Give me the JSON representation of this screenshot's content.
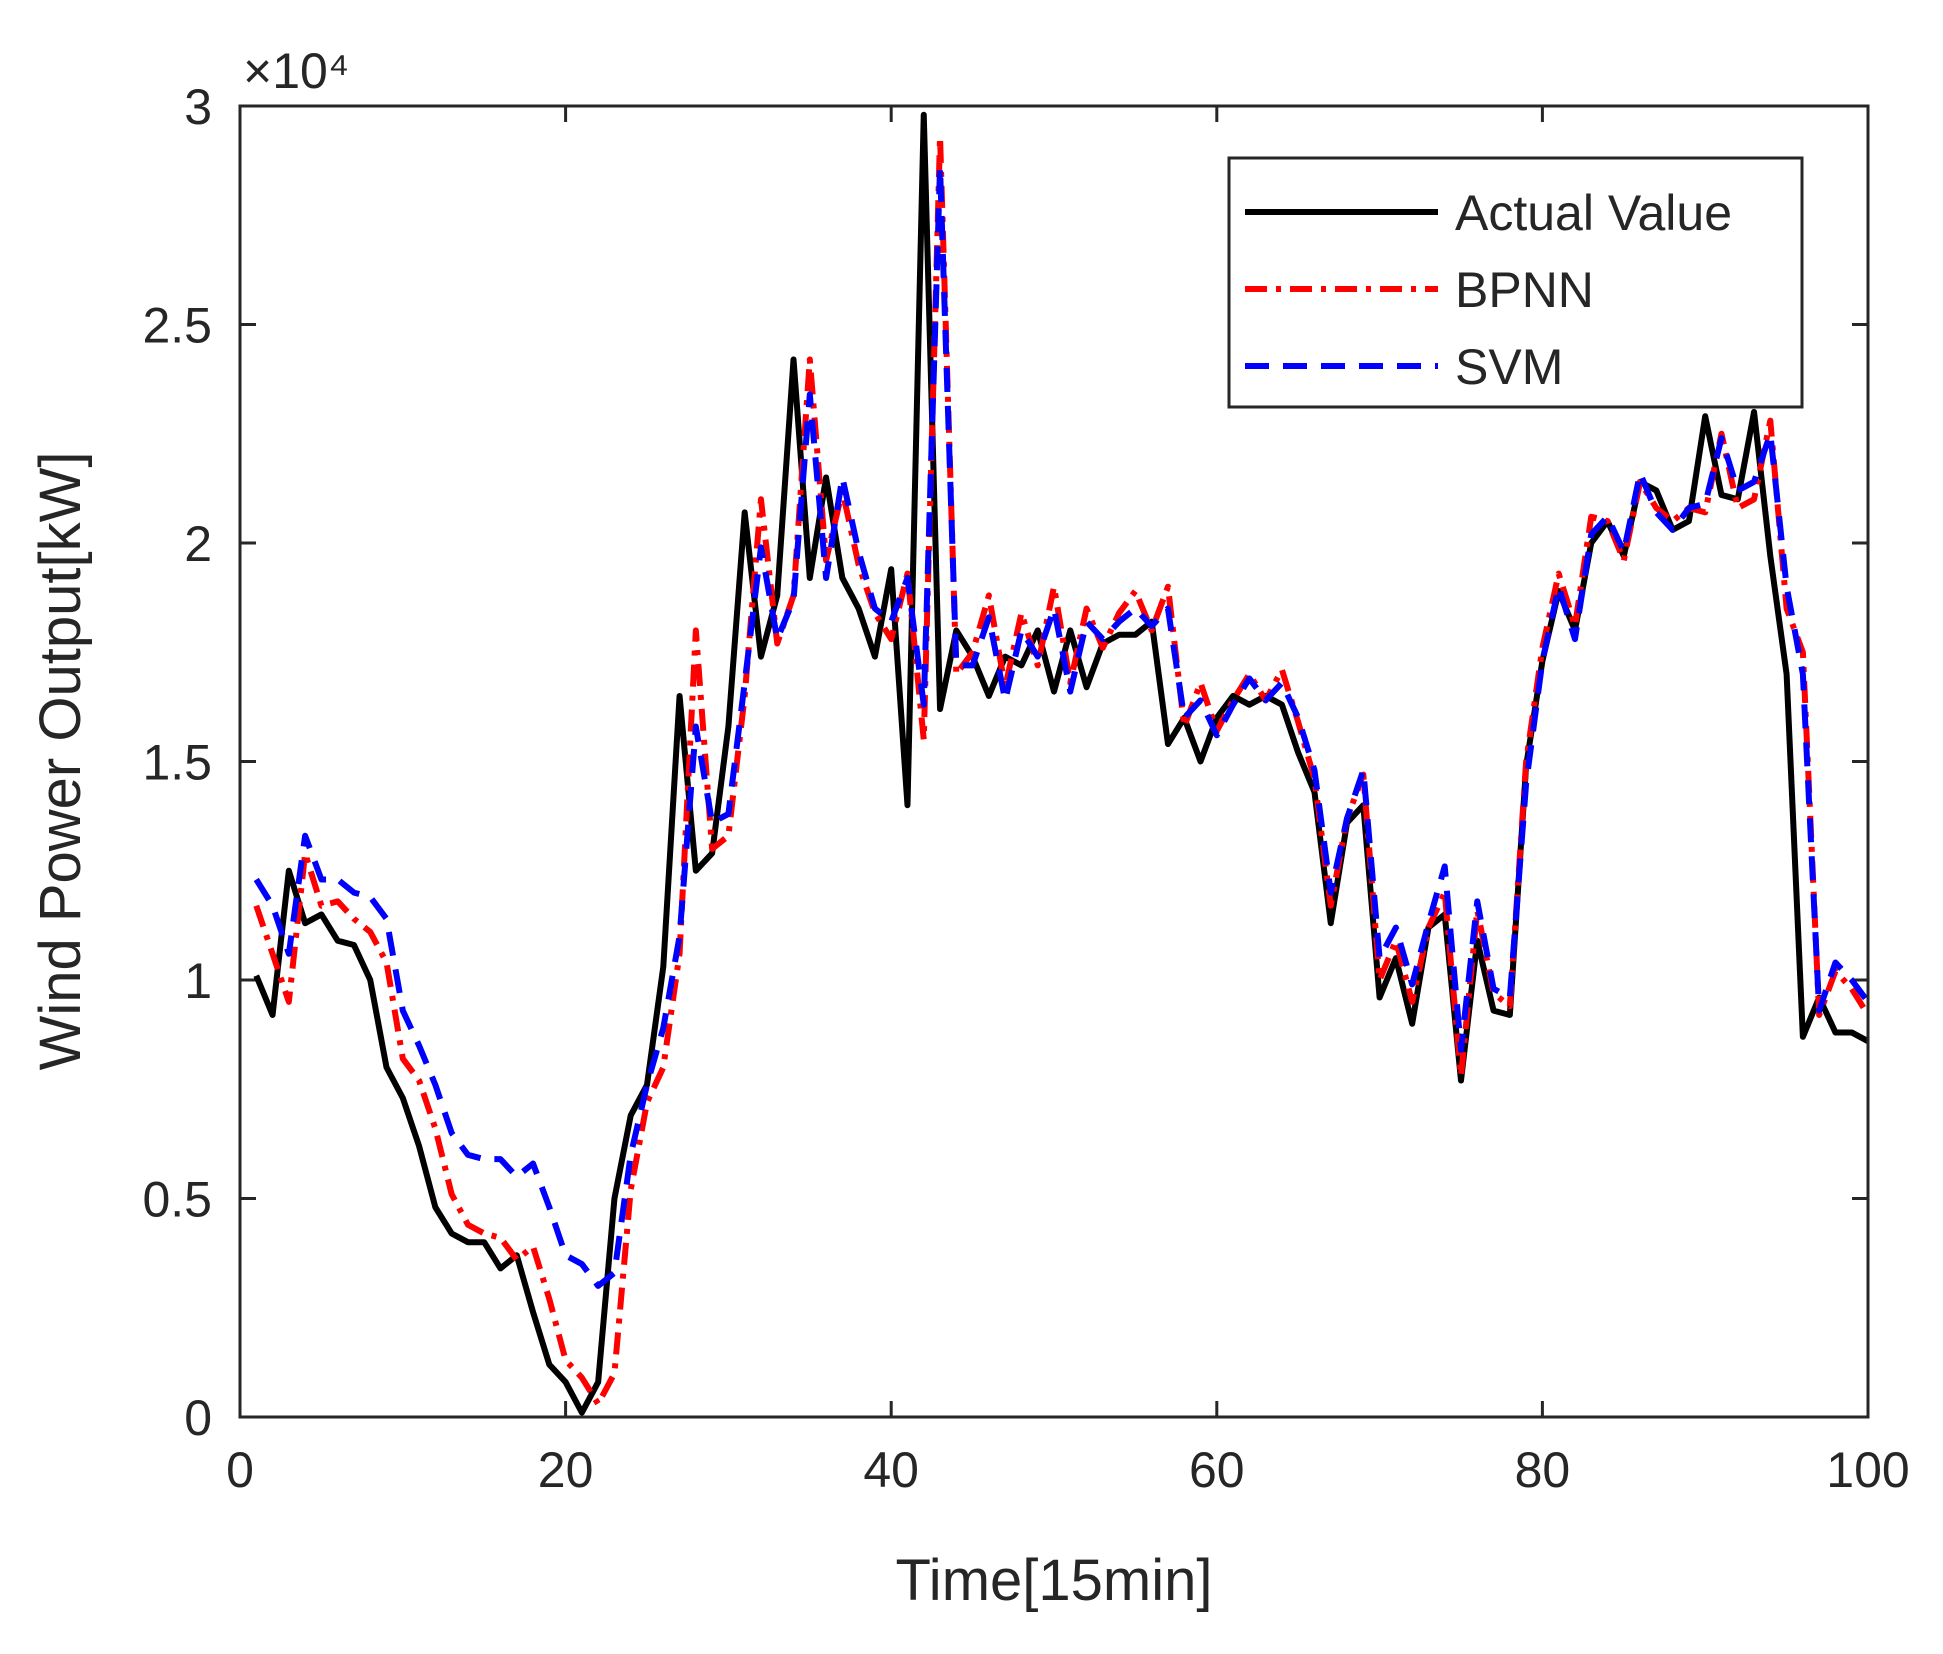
{
  "chart_data": {
    "type": "line",
    "xlabel": "Time[15min]",
    "ylabel": "Wind Power Output[kW]",
    "y_multiplier": "×10⁴",
    "xlim": [
      0,
      100
    ],
    "ylim": [
      0,
      3
    ],
    "xticks": [
      0,
      20,
      40,
      60,
      80,
      100
    ],
    "yticks": [
      0,
      0.5,
      1,
      1.5,
      2,
      2.5,
      3
    ],
    "grid": false,
    "legend": "upper right",
    "x": [
      1,
      2,
      3,
      4,
      5,
      6,
      7,
      8,
      9,
      10,
      11,
      12,
      13,
      14,
      15,
      16,
      17,
      18,
      19,
      20,
      21,
      22,
      23,
      24,
      25,
      26,
      27,
      28,
      29,
      30,
      31,
      32,
      33,
      34,
      35,
      36,
      37,
      38,
      39,
      40,
      41,
      42,
      43,
      44,
      45,
      46,
      47,
      48,
      49,
      50,
      51,
      52,
      53,
      54,
      55,
      56,
      57,
      58,
      59,
      60,
      61,
      62,
      63,
      64,
      65,
      66,
      67,
      68,
      69,
      70,
      71,
      72,
      73,
      74,
      75,
      76,
      77,
      78,
      79,
      80,
      81,
      82,
      83,
      84,
      85,
      86,
      87,
      88,
      89,
      90,
      91,
      92,
      93,
      94,
      95,
      96,
      97,
      98,
      99,
      100
    ],
    "series": [
      {
        "name": "Actual Value",
        "color": "#000000",
        "line_style": "solid",
        "values": [
          1.01,
          0.92,
          1.25,
          1.13,
          1.15,
          1.09,
          1.08,
          1.0,
          0.8,
          0.73,
          0.62,
          0.48,
          0.42,
          0.4,
          0.4,
          0.34,
          0.37,
          0.24,
          0.12,
          0.08,
          0.01,
          0.08,
          0.5,
          0.69,
          0.76,
          1.03,
          1.65,
          1.25,
          1.29,
          1.58,
          2.07,
          1.74,
          1.88,
          2.42,
          1.92,
          2.15,
          1.92,
          1.85,
          1.74,
          1.94,
          1.4,
          2.98,
          1.62,
          1.8,
          1.74,
          1.65,
          1.74,
          1.72,
          1.8,
          1.66,
          1.8,
          1.67,
          1.77,
          1.79,
          1.79,
          1.82,
          1.54,
          1.6,
          1.5,
          1.6,
          1.65,
          1.63,
          1.65,
          1.63,
          1.52,
          1.43,
          1.13,
          1.36,
          1.4,
          0.96,
          1.05,
          0.9,
          1.12,
          1.15,
          0.77,
          1.09,
          0.93,
          0.92,
          1.49,
          1.73,
          1.89,
          1.8,
          2.0,
          2.05,
          1.97,
          2.14,
          2.12,
          2.03,
          2.05,
          2.29,
          2.11,
          2.1,
          2.3,
          1.97,
          1.7,
          0.87,
          0.96,
          0.88,
          0.88,
          0.86
        ]
      },
      {
        "name": "BPNN",
        "color": "#ff0000",
        "line_style": "dashdot",
        "values": [
          1.17,
          1.06,
          0.95,
          1.29,
          1.17,
          1.18,
          1.14,
          1.11,
          1.04,
          0.82,
          0.77,
          0.66,
          0.51,
          0.44,
          0.42,
          0.41,
          0.36,
          0.39,
          0.27,
          0.13,
          0.09,
          0.03,
          0.1,
          0.52,
          0.72,
          0.8,
          1.06,
          1.8,
          1.3,
          1.33,
          1.65,
          2.1,
          1.77,
          1.88,
          2.42,
          1.96,
          2.12,
          1.95,
          1.84,
          1.78,
          1.93,
          1.55,
          2.93,
          1.7,
          1.75,
          1.88,
          1.67,
          1.84,
          1.72,
          1.9,
          1.68,
          1.85,
          1.76,
          1.84,
          1.89,
          1.8,
          1.9,
          1.58,
          1.68,
          1.57,
          1.64,
          1.7,
          1.64,
          1.71,
          1.59,
          1.46,
          1.17,
          1.37,
          1.47,
          1.0,
          1.09,
          0.95,
          1.12,
          1.2,
          0.78,
          1.16,
          0.97,
          0.94,
          1.5,
          1.76,
          1.93,
          1.81,
          2.06,
          2.05,
          1.96,
          2.14,
          2.08,
          2.05,
          2.08,
          2.07,
          2.25,
          2.08,
          2.1,
          2.28,
          1.85,
          1.75,
          0.92,
          1.02,
          0.98,
          0.92
        ]
      },
      {
        "name": "SVM",
        "color": "#0000ff",
        "line_style": "dashed",
        "values": [
          1.23,
          1.17,
          1.06,
          1.33,
          1.23,
          1.23,
          1.2,
          1.19,
          1.14,
          0.93,
          0.85,
          0.76,
          0.65,
          0.6,
          0.59,
          0.59,
          0.55,
          0.58,
          0.48,
          0.37,
          0.35,
          0.3,
          0.33,
          0.6,
          0.76,
          0.89,
          1.1,
          1.58,
          1.36,
          1.38,
          1.68,
          1.99,
          1.78,
          1.87,
          2.34,
          1.92,
          2.15,
          1.98,
          1.85,
          1.82,
          1.92,
          1.63,
          2.86,
          1.72,
          1.72,
          1.83,
          1.64,
          1.8,
          1.74,
          1.85,
          1.66,
          1.82,
          1.78,
          1.82,
          1.85,
          1.81,
          1.85,
          1.6,
          1.64,
          1.56,
          1.63,
          1.69,
          1.64,
          1.68,
          1.6,
          1.48,
          1.2,
          1.37,
          1.48,
          1.05,
          1.12,
          0.99,
          1.13,
          1.26,
          0.84,
          1.18,
          0.98,
          0.96,
          1.45,
          1.73,
          1.9,
          1.78,
          2.02,
          2.06,
          1.98,
          2.16,
          2.07,
          2.03,
          2.08,
          2.09,
          2.24,
          2.12,
          2.14,
          2.25,
          1.9,
          1.7,
          0.93,
          1.04,
          1.0,
          0.95
        ]
      }
    ]
  }
}
